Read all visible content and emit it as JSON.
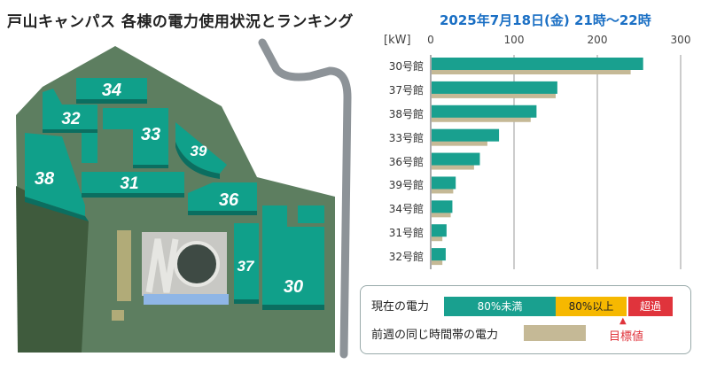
{
  "header": {
    "title": "戸山キャンパス 各棟の電力使用状況とランキング",
    "datetime": "2025年7月18日(金) 21時～22時"
  },
  "colors": {
    "current": "#19a08f",
    "previous": "#c5b996",
    "over80": "#f6b800",
    "exceeded": "#e0343c",
    "target_text": "#e0343c",
    "datetime_text": "#1a6fc4"
  },
  "map": {
    "buildings": [
      {
        "id": "34",
        "label": "34"
      },
      {
        "id": "32",
        "label": "32"
      },
      {
        "id": "33",
        "label": "33"
      },
      {
        "id": "39",
        "label": "39"
      },
      {
        "id": "38",
        "label": "38"
      },
      {
        "id": "31",
        "label": "31"
      },
      {
        "id": "36",
        "label": "36"
      },
      {
        "id": "37",
        "label": "37"
      },
      {
        "id": "30",
        "label": "30"
      }
    ]
  },
  "chart_data": {
    "type": "bar",
    "unit_label": "[kW]",
    "xlim": [
      0,
      300
    ],
    "ticks": [
      "0",
      "100",
      "200",
      "300"
    ],
    "categories": [
      "30号館",
      "37号館",
      "38号館",
      "33号館",
      "36号館",
      "39号館",
      "34号館",
      "31号館",
      "32号館"
    ],
    "series": [
      {
        "name": "現在の電力",
        "values": [
          255,
          152,
          127,
          82,
          59,
          30,
          26,
          19,
          18
        ]
      },
      {
        "name": "前週の同じ時間帯の電力",
        "values": [
          240,
          150,
          120,
          68,
          52,
          27,
          24,
          14,
          14
        ]
      }
    ],
    "grid": true
  },
  "legend": {
    "current_label": "現在の電力",
    "under80": "80%未満",
    "over80": "80%以上",
    "exceeded": "超過",
    "previous_label": "前週の同じ時間帯の電力",
    "target_label": "目標値",
    "target_marker": "▲"
  }
}
